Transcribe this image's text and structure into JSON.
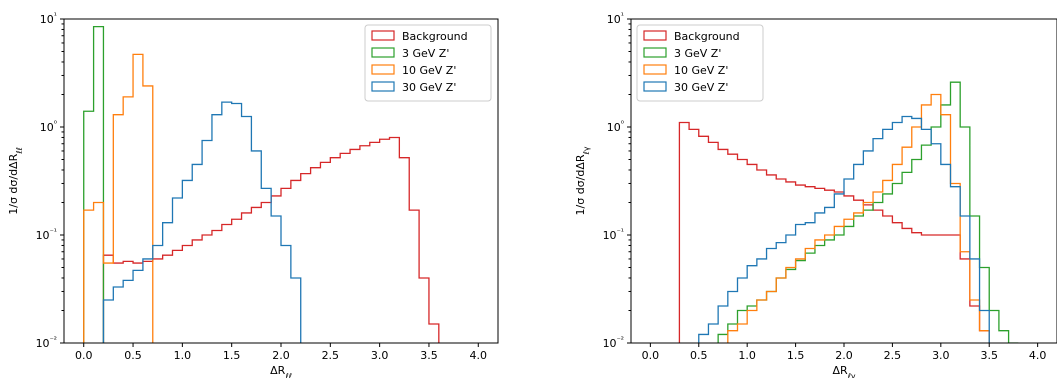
{
  "chart_data": [
    {
      "type": "histogram",
      "ylabel": "1/σ dσ/dΔR_ℓℓ",
      "xlabel": "ΔR_ℓℓ",
      "xlim": [
        -0.2,
        4.2
      ],
      "ylim": [
        0.01,
        10
      ],
      "yscale": "log",
      "xticks": [
        "0.0",
        "0.5",
        "1.0",
        "1.5",
        "2.0",
        "2.5",
        "3.0",
        "3.5",
        "4.0"
      ],
      "yticks": [
        "10⁻²",
        "10⁻¹",
        "10⁰",
        "10¹"
      ],
      "legend_position": "top-right",
      "bin_width": 0.1,
      "series": [
        {
          "name": "Background",
          "color": "#d62728",
          "x_start": 0.2,
          "values": [
            0.065,
            0.055,
            0.057,
            0.055,
            0.057,
            0.06,
            0.065,
            0.072,
            0.08,
            0.09,
            0.1,
            0.11,
            0.125,
            0.14,
            0.16,
            0.18,
            0.2,
            0.23,
            0.27,
            0.32,
            0.37,
            0.42,
            0.47,
            0.52,
            0.57,
            0.62,
            0.67,
            0.72,
            0.77,
            0.8,
            0.52,
            0.17,
            0.04,
            0.015
          ]
        },
        {
          "name": "3 GeV Z'",
          "color": "#2ca02c",
          "x_start": 0.0,
          "values": [
            1.4,
            8.5
          ]
        },
        {
          "name": "10 GeV Z'",
          "color": "#ff7f0e",
          "x_start": 0.0,
          "values": [
            0.17,
            0.2,
            0.055,
            1.3,
            1.9,
            4.7,
            2.4
          ]
        },
        {
          "name": "30 GeV Z'",
          "color": "#1f77b4",
          "x_start": 0.2,
          "values": [
            0.025,
            0.033,
            0.038,
            0.047,
            0.06,
            0.08,
            0.13,
            0.22,
            0.32,
            0.45,
            0.75,
            1.3,
            1.7,
            1.65,
            1.25,
            0.6,
            0.27,
            0.15,
            0.08,
            0.04
          ]
        }
      ]
    },
    {
      "type": "histogram",
      "ylabel": "1/σ dσ/dΔR_ℓγ",
      "xlabel": "ΔR_ℓγ",
      "xlim": [
        -0.2,
        4.2
      ],
      "ylim": [
        0.01,
        10
      ],
      "yscale": "log",
      "xticks": [
        "0.0",
        "0.5",
        "1.0",
        "1.5",
        "2.0",
        "2.5",
        "3.0",
        "3.5",
        "4.0"
      ],
      "yticks": [
        "10⁻²",
        "10⁻¹",
        "10⁰",
        "10¹"
      ],
      "legend_position": "top-left",
      "bin_width": 0.1,
      "series": [
        {
          "name": "Background",
          "color": "#d62728",
          "x_start": 0.3,
          "values": [
            1.1,
            0.95,
            0.82,
            0.72,
            0.62,
            0.56,
            0.5,
            0.45,
            0.4,
            0.36,
            0.33,
            0.31,
            0.29,
            0.28,
            0.27,
            0.26,
            0.25,
            0.23,
            0.21,
            0.19,
            0.17,
            0.15,
            0.13,
            0.115,
            0.105,
            0.1,
            0.1,
            0.1,
            0.1,
            0.06,
            0.022,
            0.013
          ]
        },
        {
          "name": "3 GeV Z'",
          "color": "#2ca02c",
          "x_start": 0.7,
          "values": [
            0.012,
            0.015,
            0.02,
            0.022,
            0.025,
            0.03,
            0.04,
            0.048,
            0.058,
            0.068,
            0.08,
            0.09,
            0.1,
            0.12,
            0.15,
            0.17,
            0.2,
            0.24,
            0.3,
            0.38,
            0.5,
            0.68,
            1.0,
            1.6,
            2.6,
            1.0,
            0.15,
            0.05,
            0.02,
            0.013,
            0.01
          ]
        },
        {
          "name": "10 GeV Z'",
          "color": "#ff7f0e",
          "x_start": 0.8,
          "values": [
            0.013,
            0.015,
            0.02,
            0.025,
            0.03,
            0.04,
            0.05,
            0.06,
            0.075,
            0.09,
            0.1,
            0.12,
            0.14,
            0.16,
            0.2,
            0.25,
            0.32,
            0.45,
            0.65,
            1.0,
            1.6,
            2.0,
            1.3,
            0.3,
            0.07,
            0.025,
            0.013
          ]
        },
        {
          "name": "30 GeV Z'",
          "color": "#1f77b4",
          "x_start": 0.5,
          "values": [
            0.012,
            0.015,
            0.022,
            0.03,
            0.04,
            0.052,
            0.06,
            0.075,
            0.085,
            0.1,
            0.125,
            0.13,
            0.16,
            0.18,
            0.24,
            0.33,
            0.45,
            0.6,
            0.78,
            0.95,
            1.1,
            1.25,
            1.2,
            0.95,
            0.7,
            0.45,
            0.28,
            0.15,
            0.06,
            0.02
          ]
        }
      ]
    }
  ]
}
